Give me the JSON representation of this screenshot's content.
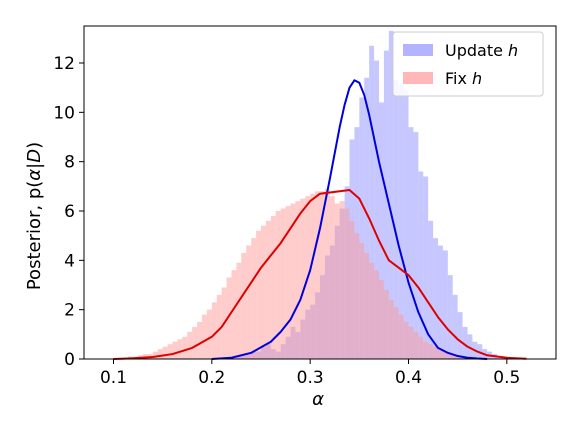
{
  "chart_data": {
    "type": "bar",
    "title": "",
    "xlabel": "α",
    "ylabel_main": "Posterior, p(",
    "ylabel_alpha": "α",
    "ylabel_mid": "|",
    "ylabel_D": "D",
    "ylabel_end": ")",
    "xlim": [
      0.07,
      0.55
    ],
    "ylim": [
      0,
      13.5
    ],
    "xticks": [
      0.1,
      0.2,
      0.3,
      0.4,
      0.5
    ],
    "xtick_labels": [
      "0.1",
      "0.2",
      "0.3",
      "0.4",
      "0.5"
    ],
    "yticks": [
      0,
      2,
      4,
      6,
      8,
      10,
      12
    ],
    "ytick_labels": [
      "0",
      "2",
      "4",
      "6",
      "8",
      "10",
      "12"
    ],
    "grid": false,
    "legend_position": "top-right",
    "series": [
      {
        "name_prefix": "Update ",
        "name_italic": "h",
        "hist_color": "#9999ff",
        "hist_opacity": 0.55,
        "kde_color": "#0000dd",
        "bin_start": 0.225,
        "bin_width": 0.005,
        "hist_values": [
          0.1,
          0.2,
          0.2,
          0.3,
          0.3,
          0.5,
          0.6,
          0.4,
          0.3,
          0.6,
          0.9,
          1.3,
          1.1,
          1.6,
          2.0,
          2.2,
          2.7,
          3.4,
          4.2,
          4.6,
          5.4,
          6.1,
          7.0,
          8.9,
          9.4,
          10.6,
          11.4,
          12.7,
          12.1,
          10.4,
          12.5,
          13.3,
          11.3,
          11.1,
          10.9,
          9.4,
          9.2,
          7.6,
          7.4,
          5.6,
          4.9,
          4.6,
          4.4,
          3.4,
          2.6,
          1.9,
          1.3,
          1.0,
          0.7,
          0.6,
          0.4,
          0.3,
          0.2,
          0.1,
          0.1
        ],
        "kde_x": [
          0.2,
          0.22,
          0.24,
          0.26,
          0.27,
          0.28,
          0.29,
          0.3,
          0.31,
          0.32,
          0.33,
          0.335,
          0.34,
          0.345,
          0.35,
          0.355,
          0.36,
          0.37,
          0.38,
          0.39,
          0.4,
          0.41,
          0.42,
          0.43,
          0.44,
          0.45,
          0.46,
          0.47,
          0.48
        ],
        "kde_y": [
          0.0,
          0.05,
          0.25,
          0.7,
          1.1,
          1.6,
          2.4,
          3.6,
          5.3,
          7.3,
          9.4,
          10.3,
          11.0,
          11.3,
          11.2,
          10.7,
          9.9,
          8.0,
          6.3,
          4.6,
          3.1,
          1.9,
          1.0,
          0.45,
          0.25,
          0.12,
          0.05,
          0.02,
          0.0
        ]
      },
      {
        "name_prefix": "Fix ",
        "name_italic": "h",
        "hist_color": "#ff9999",
        "hist_opacity": 0.5,
        "kde_color": "#dd0000",
        "bin_start": 0.11,
        "bin_width": 0.005,
        "hist_values": [
          0.05,
          0.1,
          0.1,
          0.15,
          0.2,
          0.2,
          0.3,
          0.4,
          0.5,
          0.6,
          0.7,
          0.8,
          0.9,
          1.1,
          1.3,
          1.5,
          1.8,
          2.0,
          2.3,
          2.6,
          2.9,
          3.3,
          3.6,
          3.9,
          4.3,
          4.6,
          4.9,
          5.2,
          5.4,
          5.6,
          5.8,
          6.0,
          6.1,
          6.2,
          6.3,
          6.4,
          6.5,
          6.6,
          6.7,
          6.8,
          6.8,
          6.9,
          6.6,
          6.3,
          6.4,
          6.1,
          5.6,
          5.1,
          4.7,
          4.3,
          3.9,
          3.6,
          3.2,
          2.8,
          2.4,
          2.1,
          1.8,
          1.5,
          1.3,
          1.1,
          0.9,
          0.7,
          0.6,
          0.5,
          0.4,
          0.3,
          0.25,
          0.2,
          0.15,
          0.1,
          0.1,
          0.05,
          0.05,
          0.05
        ],
        "kde_x": [
          0.1,
          0.12,
          0.14,
          0.16,
          0.18,
          0.2,
          0.21,
          0.22,
          0.23,
          0.24,
          0.25,
          0.26,
          0.27,
          0.28,
          0.29,
          0.3,
          0.31,
          0.32,
          0.33,
          0.34,
          0.35,
          0.36,
          0.37,
          0.38,
          0.39,
          0.4,
          0.41,
          0.42,
          0.43,
          0.44,
          0.45,
          0.46,
          0.47,
          0.48,
          0.5,
          0.52
        ],
        "kde_y": [
          0.0,
          0.03,
          0.08,
          0.2,
          0.45,
          0.9,
          1.3,
          1.9,
          2.5,
          3.1,
          3.7,
          4.2,
          4.7,
          5.3,
          5.9,
          6.4,
          6.7,
          6.75,
          6.8,
          6.85,
          6.5,
          5.7,
          4.8,
          4.0,
          3.7,
          3.4,
          2.9,
          2.3,
          1.7,
          1.2,
          0.8,
          0.5,
          0.3,
          0.15,
          0.05,
          0.01
        ]
      }
    ]
  }
}
